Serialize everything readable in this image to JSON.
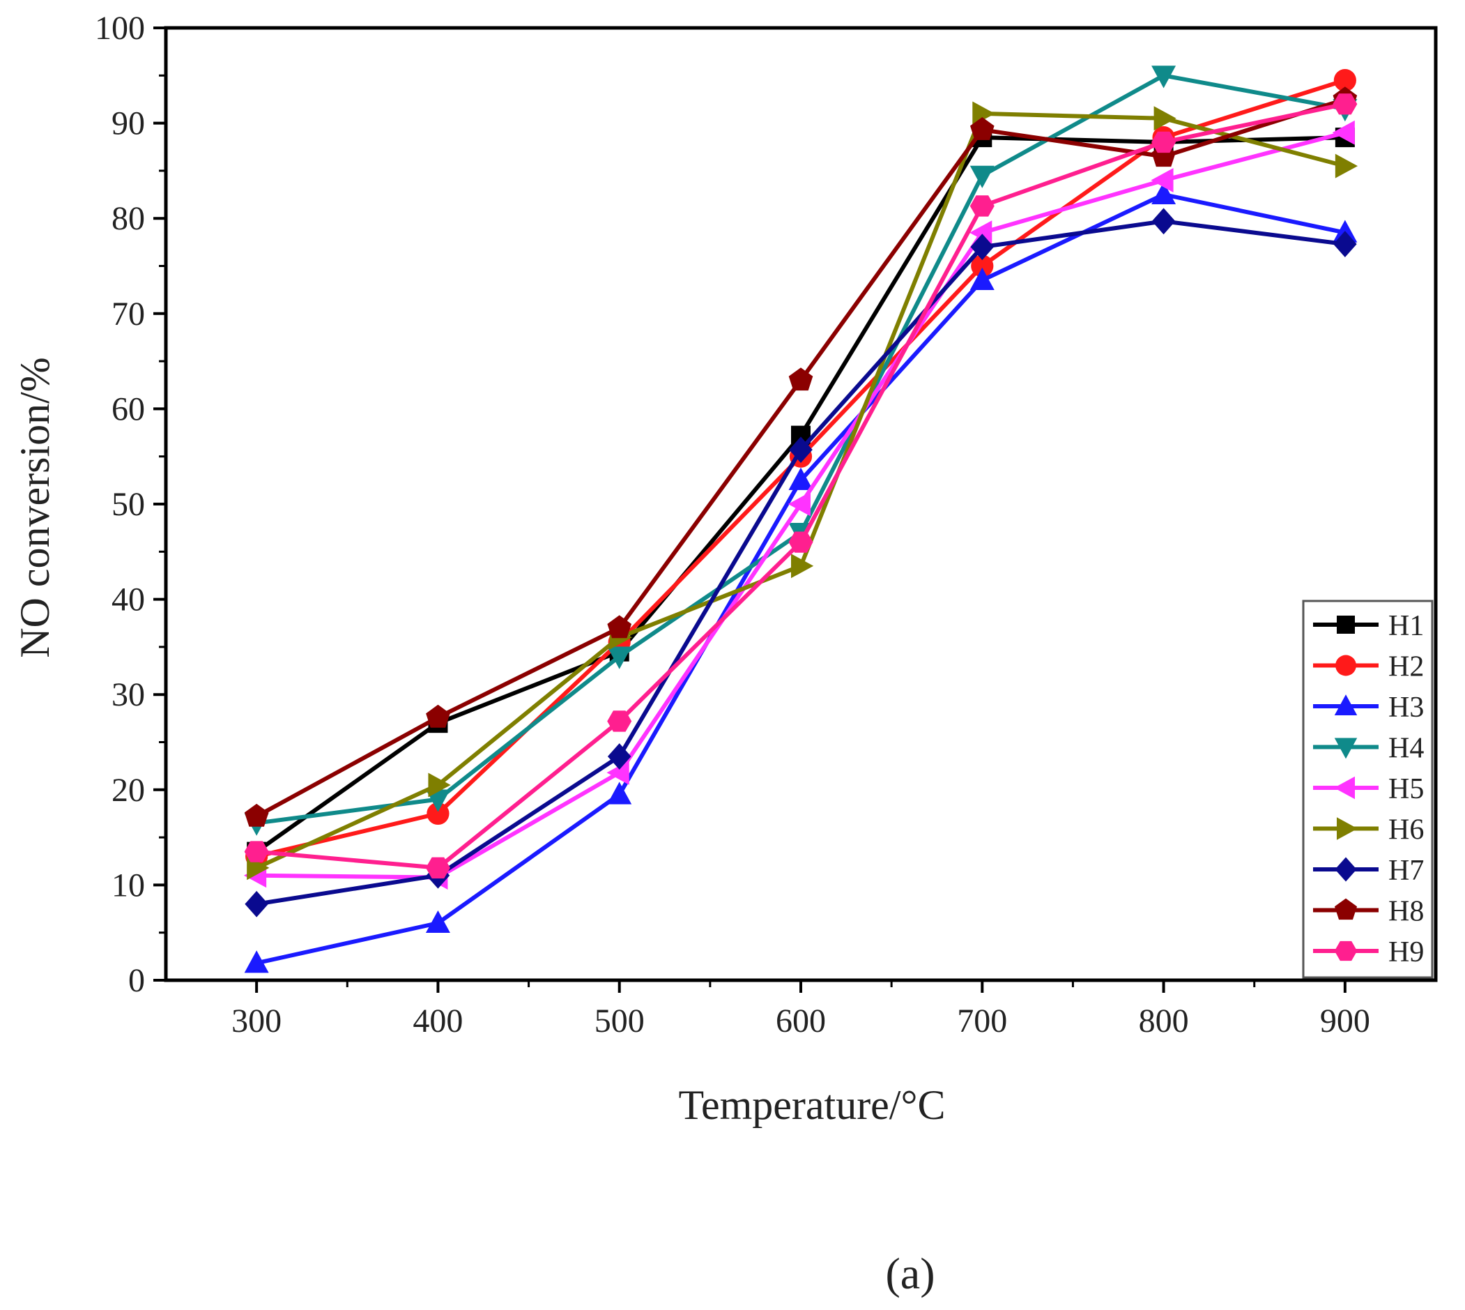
{
  "chart_data": {
    "type": "line",
    "title": "",
    "xlabel": "Temperature/°C",
    "ylabel": "NO conversion/%",
    "xlim": [
      250,
      950
    ],
    "ylim": [
      0,
      100
    ],
    "x": [
      300,
      400,
      500,
      600,
      700,
      800,
      900
    ],
    "xticks": [
      "300",
      "400",
      "500",
      "600",
      "700",
      "800",
      "900"
    ],
    "yticks": [
      "0",
      "10",
      "20",
      "30",
      "40",
      "50",
      "60",
      "70",
      "80",
      "90",
      "100"
    ],
    "grid": false,
    "legend_position": "bottom-right",
    "caption": "(a)",
    "series": [
      {
        "name": "H1",
        "color": "#000000",
        "marker": "square",
        "values": [
          13.5,
          27,
          34.5,
          57.2,
          88.5,
          88,
          88.5
        ]
      },
      {
        "name": "H2",
        "color": "#ff1a1a",
        "marker": "circle",
        "values": [
          13,
          17.5,
          35.5,
          55,
          75,
          88.5,
          94.5
        ]
      },
      {
        "name": "H3",
        "color": "#1a1aff",
        "marker": "triangle-up",
        "values": [
          1.8,
          6,
          19.5,
          52.5,
          73.5,
          82.5,
          78.5
        ]
      },
      {
        "name": "H4",
        "color": "#0f8a8a",
        "marker": "triangle-down",
        "values": [
          16.5,
          19,
          34,
          47,
          84.5,
          95,
          91.5
        ]
      },
      {
        "name": "H5",
        "color": "#ff33ff",
        "marker": "triangle-left",
        "values": [
          11,
          10.8,
          21.8,
          50,
          78.5,
          84,
          89
        ]
      },
      {
        "name": "H6",
        "color": "#7f7f00",
        "marker": "triangle-right",
        "values": [
          11.8,
          20.5,
          36,
          43.5,
          91,
          90.5,
          85.5
        ]
      },
      {
        "name": "H7",
        "color": "#0a0a8f",
        "marker": "diamond",
        "values": [
          8,
          11,
          23.5,
          55.7,
          77,
          79.7,
          77.3
        ]
      },
      {
        "name": "H8",
        "color": "#8b0000",
        "marker": "pentagon",
        "values": [
          17.2,
          27.6,
          37,
          63,
          89.3,
          86.5,
          92.5
        ]
      },
      {
        "name": "H9",
        "color": "#ff1f8f",
        "marker": "hexagon",
        "values": [
          13.5,
          11.8,
          27.2,
          46,
          81.3,
          88,
          92
        ]
      }
    ]
  }
}
